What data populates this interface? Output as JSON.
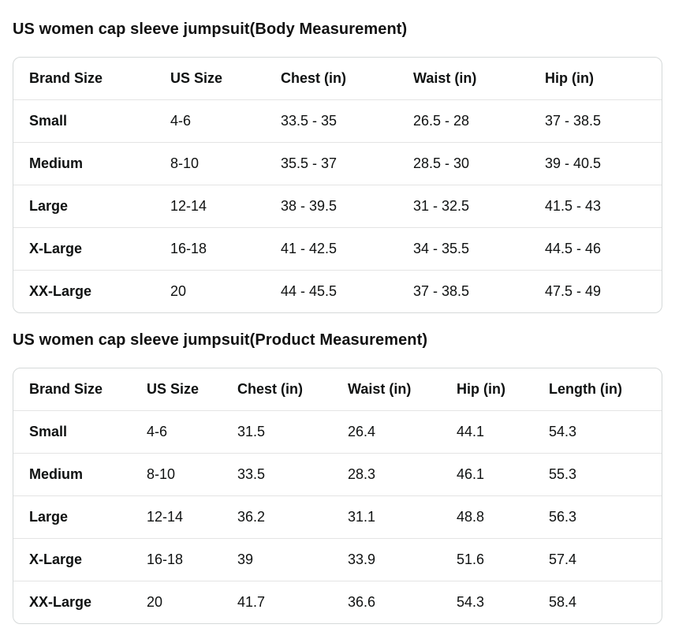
{
  "sections": [
    {
      "title": "US women cap sleeve jumpsuit(Body Measurement)",
      "table": {
        "headers": [
          "Brand Size",
          "US Size",
          "Chest (in)",
          "Waist (in)",
          "Hip (in)"
        ],
        "rows": [
          [
            "Small",
            "4-6",
            "33.5 - 35",
            "26.5 - 28",
            "37 - 38.5"
          ],
          [
            "Medium",
            "8-10",
            "35.5 - 37",
            "28.5 - 30",
            "39 - 40.5"
          ],
          [
            "Large",
            "12-14",
            "38 - 39.5",
            "31 - 32.5",
            "41.5 - 43"
          ],
          [
            "X-Large",
            "16-18",
            "41 - 42.5",
            "34 - 35.5",
            "44.5 - 46"
          ],
          [
            "XX-Large",
            "20",
            "44 - 45.5",
            "37 - 38.5",
            "47.5 - 49"
          ]
        ]
      }
    },
    {
      "title": "US women cap sleeve jumpsuit(Product Measurement)",
      "table": {
        "headers": [
          "Brand Size",
          "US Size",
          "Chest (in)",
          "Waist (in)",
          "Hip (in)",
          "Length (in)"
        ],
        "rows": [
          [
            "Small",
            "4-6",
            "31.5",
            "26.4",
            "44.1",
            "54.3"
          ],
          [
            "Medium",
            "8-10",
            "33.5",
            "28.3",
            "46.1",
            "55.3"
          ],
          [
            "Large",
            "12-14",
            "36.2",
            "31.1",
            "48.8",
            "56.3"
          ],
          [
            "X-Large",
            "16-18",
            "39",
            "33.9",
            "51.6",
            "57.4"
          ],
          [
            "XX-Large",
            "20",
            "41.7",
            "36.6",
            "54.3",
            "58.4"
          ]
        ]
      }
    }
  ],
  "colors": {
    "text": "#0F1111",
    "card_border": "#D5D9D9",
    "row_divider": "#E4E4E4",
    "background": "#FFFFFF"
  }
}
